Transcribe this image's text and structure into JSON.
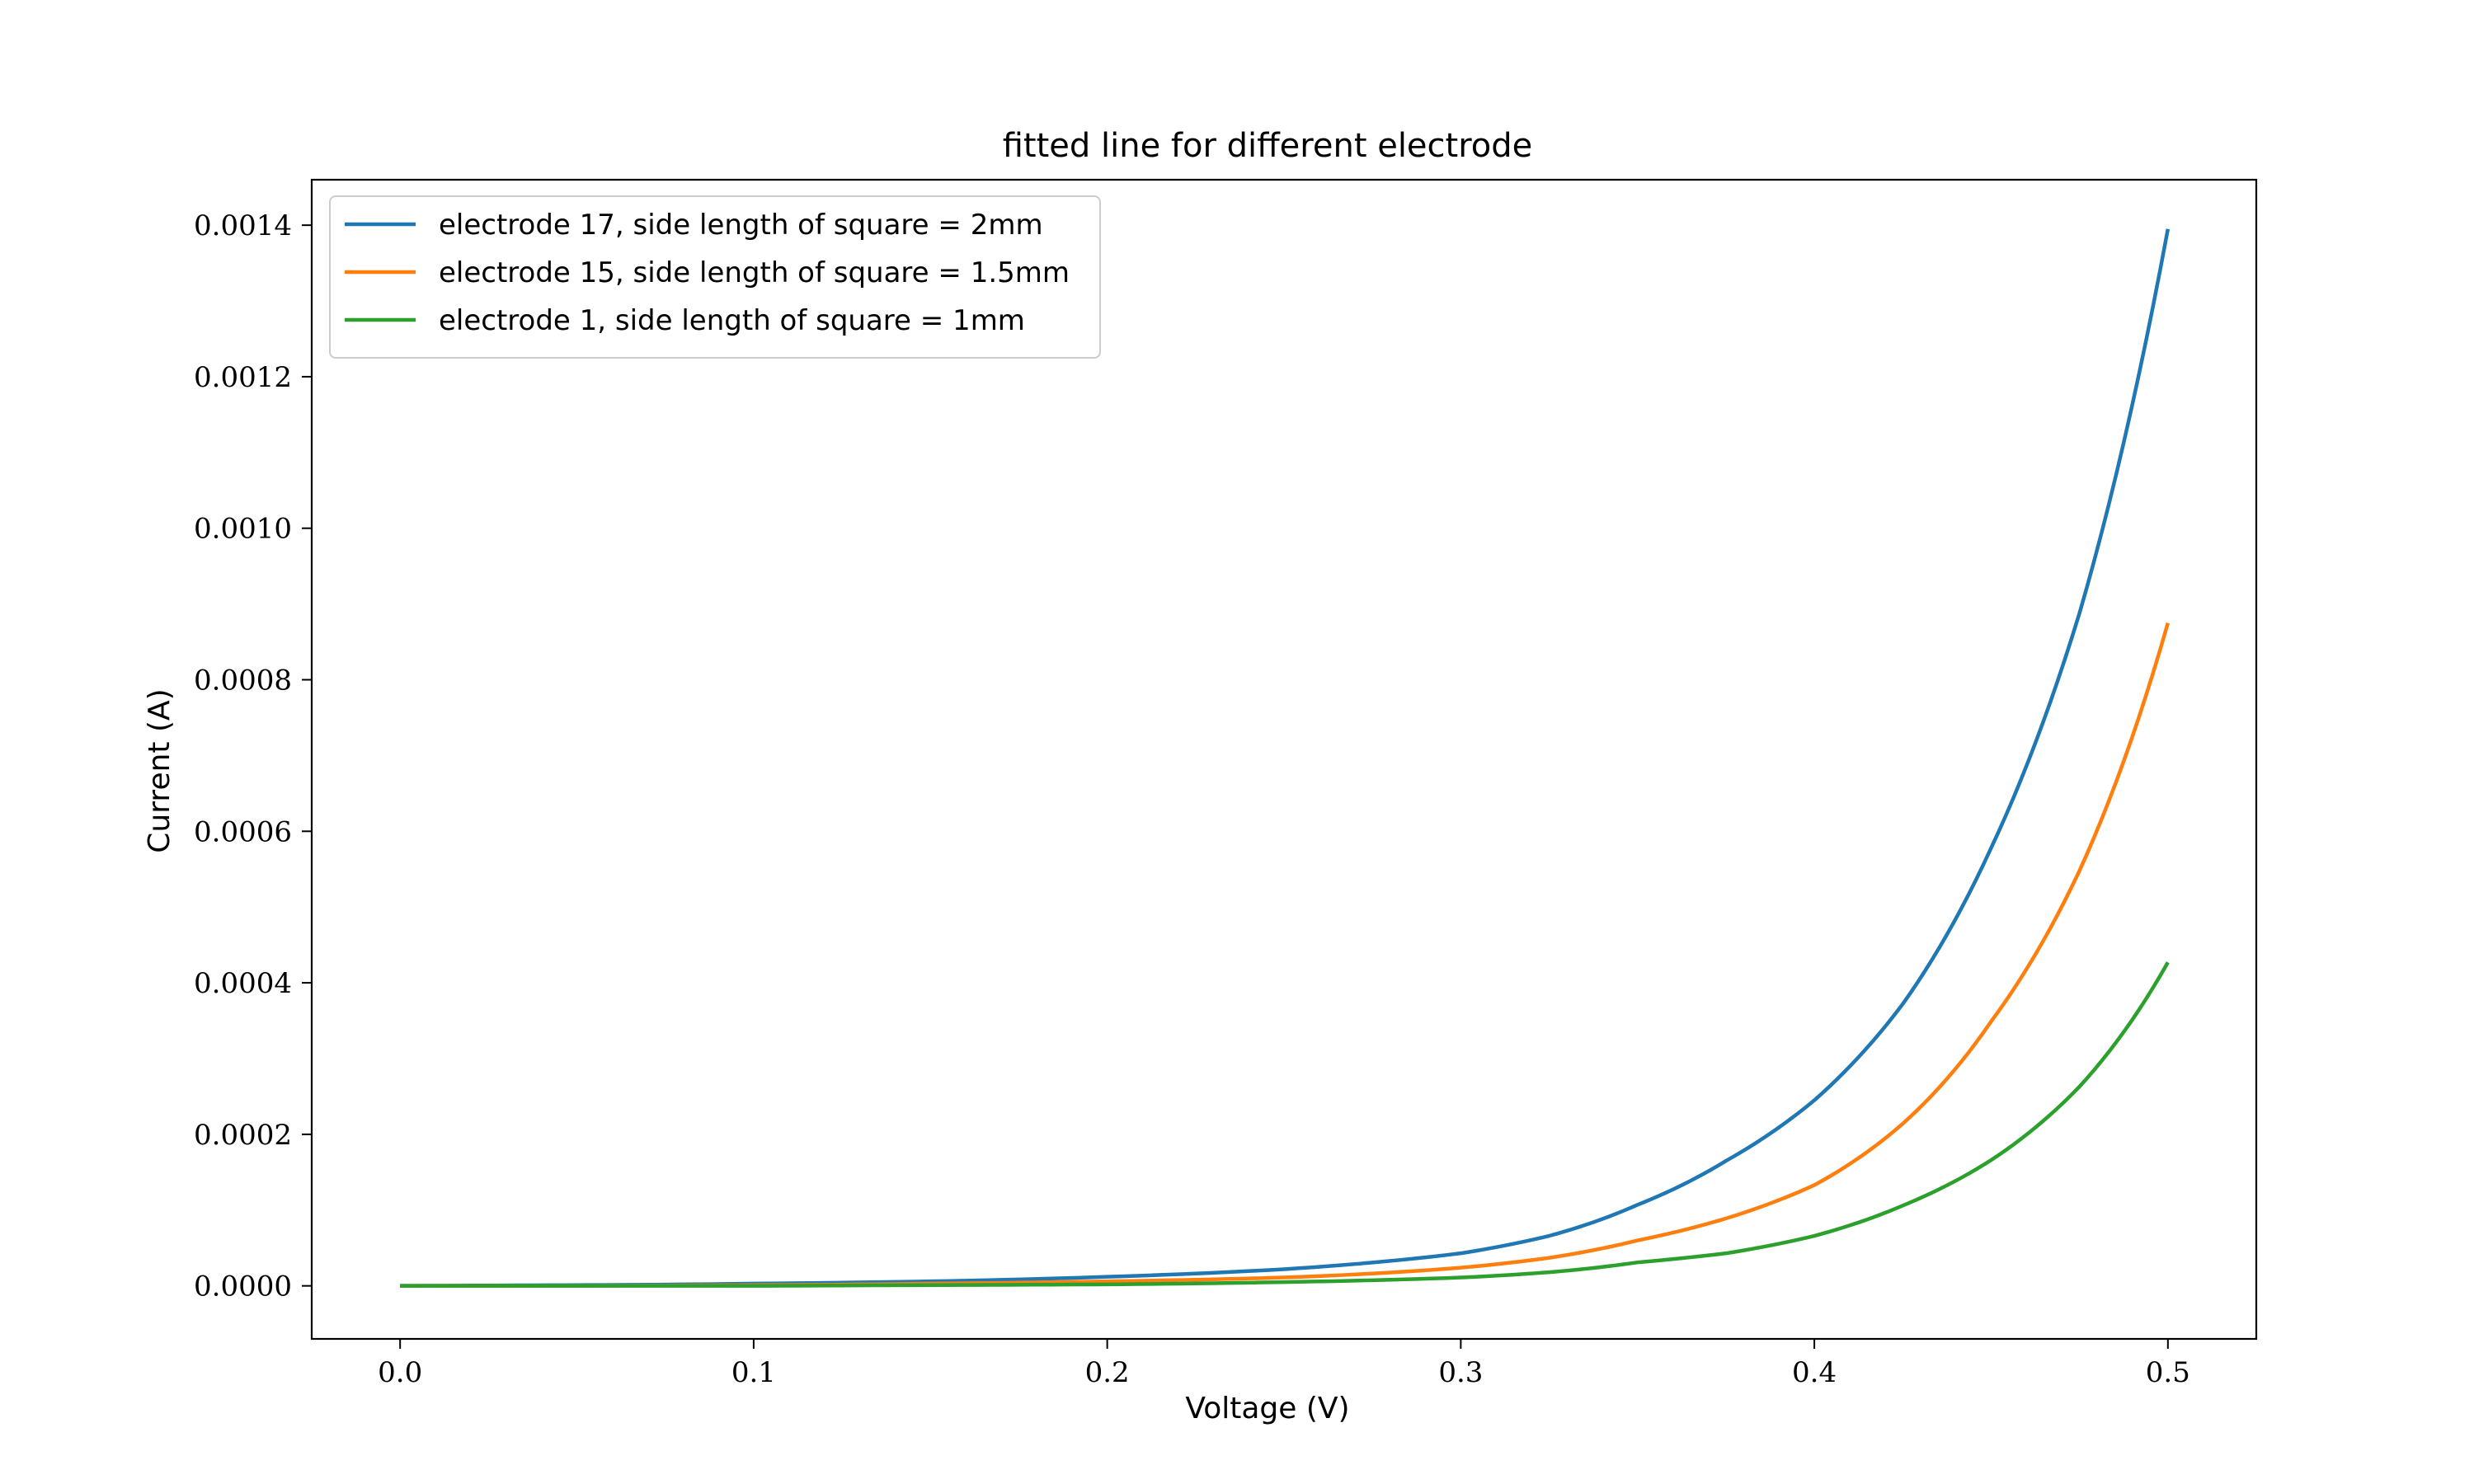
{
  "chart_data": {
    "type": "line",
    "title": "fitted line for different electrode",
    "xlabel": "Voltage (V)",
    "ylabel": "Current (A)",
    "xlim": [
      -0.025,
      0.525
    ],
    "ylim": [
      -7e-05,
      0.00146
    ],
    "x_ticks": [
      0.0,
      0.1,
      0.2,
      0.3,
      0.4,
      0.5
    ],
    "x_tick_labels": [
      "0.0",
      "0.1",
      "0.2",
      "0.3",
      "0.4",
      "0.5"
    ],
    "y_ticks": [
      0.0,
      0.0002,
      0.0004,
      0.0006,
      0.0008,
      0.001,
      0.0012,
      0.0014
    ],
    "y_tick_labels": [
      "0.0000",
      "0.0002",
      "0.0004",
      "0.0006",
      "0.0008",
      "0.0010",
      "0.0012",
      "0.0014"
    ],
    "grid": false,
    "legend_position": "top-left",
    "x": [
      0.0,
      0.05,
      0.1,
      0.15,
      0.2,
      0.25,
      0.3,
      0.325,
      0.35,
      0.375,
      0.4,
      0.425,
      0.45,
      0.475,
      0.5
    ],
    "series": [
      {
        "name": "electrode 17, side length of square = 2mm",
        "color": "#1f77b4",
        "values": [
          0.0,
          1e-06,
          3e-06,
          6e-06,
          1.2e-05,
          2.2e-05,
          4.3e-05,
          6.6e-05,
          0.000107,
          0.000165,
          0.000245,
          0.000372,
          0.000578,
          0.000888,
          0.001395
        ]
      },
      {
        "name": "electrode 15, side length of square = 1.5mm",
        "color": "#ff7f0e",
        "values": [
          0.0,
          0.0,
          1e-06,
          3e-06,
          6e-06,
          1.1e-05,
          2.4e-05,
          3.7e-05,
          6e-05,
          8.9e-05,
          0.000133,
          0.000214,
          0.000349,
          0.000548,
          0.000875
        ]
      },
      {
        "name": "electrode 1, side length of square = 1mm",
        "color": "#2ca02c",
        "values": [
          0.0,
          0.0,
          0.0,
          1e-06,
          2e-06,
          5e-06,
          1.1e-05,
          1.8e-05,
          3.1e-05,
          4.3e-05,
          6.6e-05,
          0.000106,
          0.000166,
          0.000263,
          0.000427
        ]
      }
    ]
  }
}
